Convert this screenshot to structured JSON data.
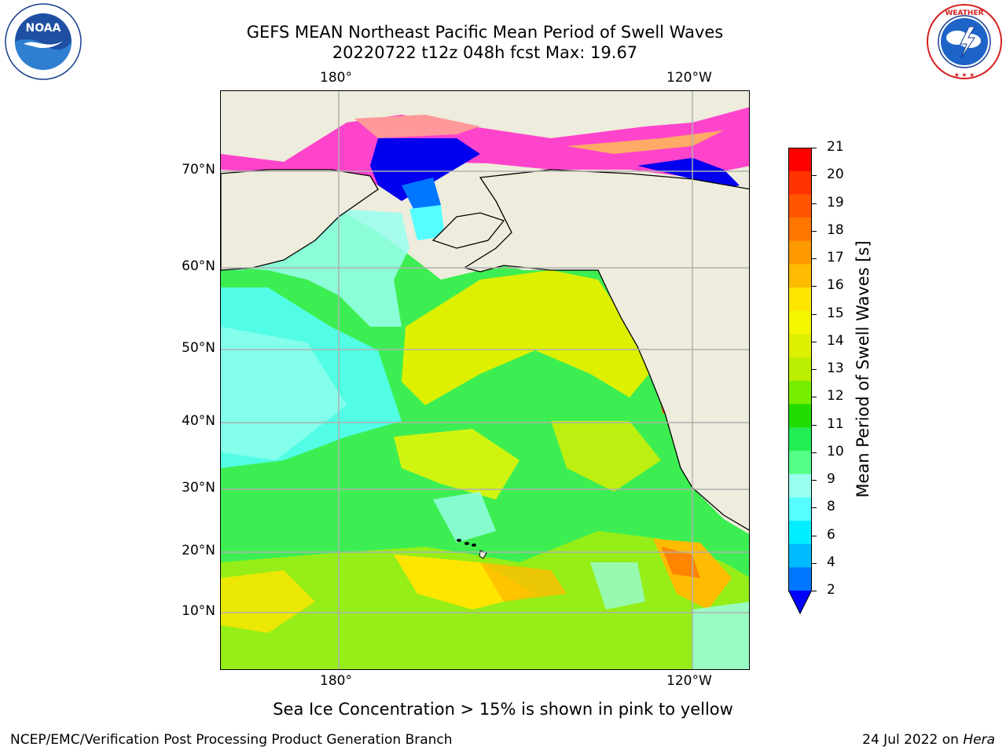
{
  "header": {
    "title_line1": "GEFS MEAN Northeast Pacific Mean Period of Swell Waves",
    "title_line2": "20220722 t12z 048h fcst   Max: 19.67"
  },
  "logos": {
    "left": {
      "icon": "noaa-logo-icon",
      "text": "NOAA",
      "ring_text": "NATIONAL OCEANIC AND ATMOSPHERIC ADMINISTRATION • U.S. DEPARTMENT OF COMMERCE"
    },
    "right": {
      "icon": "nws-logo-icon",
      "ring_text": "NATIONAL WEATHER SERVICE"
    }
  },
  "map": {
    "lon_labels_top": [
      "180°",
      "120°W"
    ],
    "lon_labels_bottom": [
      "180°",
      "120°W"
    ],
    "lat_labels": [
      "70°N",
      "60°N",
      "50°N",
      "40°N",
      "30°N",
      "20°N",
      "10°N"
    ],
    "land_color": "#eeecdc",
    "gridline_color": "#b0b0b0"
  },
  "colorbar": {
    "label": "Mean Period of Swell Waves [s]",
    "ticks": [
      "21",
      "20",
      "19",
      "18",
      "17",
      "16",
      "15",
      "14",
      "13",
      "12",
      "11",
      "10",
      "9",
      "8",
      "6",
      "4",
      "2"
    ],
    "colors_top_to_bottom": [
      "#ff0000",
      "#ff3300",
      "#ff5500",
      "#ff7700",
      "#ff9900",
      "#ffbb00",
      "#ffe600",
      "#f5f500",
      "#ddf000",
      "#bbee00",
      "#77ee00",
      "#22dd00",
      "#22ee55",
      "#55ff88",
      "#99ffee",
      "#55ffff",
      "#00eeff",
      "#00bbff",
      "#0077ff"
    ],
    "under_color": "#0000ff"
  },
  "note": "Sea Ice Concentration > 15% is shown in pink to yellow",
  "footer": {
    "left": "NCEP/EMC/Verification Post Processing Product Generation Branch",
    "right_date": "24 Jul 2022 on ",
    "right_host": "Hera"
  }
}
